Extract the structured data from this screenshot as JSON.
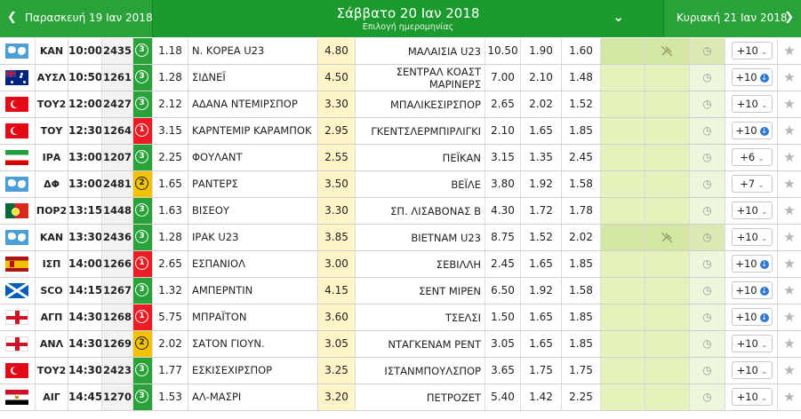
{
  "header": {
    "prev_day": "Παρασκευή 19 Ιαν 2018",
    "current_day": "Σάββατο 20 Ιαν 2018",
    "date_picker_label": "Επιλογή ημερομηνίας",
    "next_day": "Κυριακή 21 Ιαν 2018",
    "colors": {
      "bar": "#1b9a2e",
      "side": "#2aa23a"
    }
  },
  "colors": {
    "badge_green": "#2aa23a",
    "badge_red": "#ed1c24",
    "badge_yellow": "#f3c200",
    "draw_cell": "#fff5c9",
    "green_cell": "#e6f2bc"
  },
  "matches": [
    {
      "flag": "world-flag",
      "league": "ΚΑΝ",
      "time": "10:00",
      "code": "2435",
      "badge": "3",
      "badge_color": "green",
      "odd1": "1.18",
      "home": "Ν. ΚΟΡΕΑ U23",
      "oddx": "4.80",
      "away": [
        "ΜΑΛΑΙΣΙΑ U23"
      ],
      "odd2": "10.50",
      "under": "1.90",
      "over": "1.60",
      "more": "+10",
      "live": false,
      "no_stream": true
    },
    {
      "flag": "australia-flag",
      "league": "ΑΥΣΛ",
      "time": "10:50",
      "code": "1261",
      "badge": "3",
      "badge_color": "green",
      "odd1": "1.28",
      "home": "ΣΙΔΝΕΪ",
      "oddx": "4.50",
      "away": [
        "ΣΕΝΤΡΑΛ ΚΟΑΣΤ",
        "ΜΑΡΙΝΕΡΣ"
      ],
      "odd2": "7.00",
      "under": "2.10",
      "over": "1.48",
      "more": "+10",
      "live": true,
      "no_stream": false
    },
    {
      "flag": "turkey-flag",
      "league": "ΤΟΥ2",
      "time": "12:00",
      "code": "2427",
      "badge": "3",
      "badge_color": "green",
      "odd1": "2.12",
      "home": "ΑΔΑΝΑ ΝΤΕΜΙΡΣΠΟΡ",
      "oddx": "3.30",
      "away": [
        "ΜΠΑΛΙΚΕΣΙΡΣΠΟΡ"
      ],
      "odd2": "2.65",
      "under": "2.02",
      "over": "1.52",
      "more": "+10",
      "live": false,
      "no_stream": false
    },
    {
      "flag": "turkey-flag",
      "league": "ΤΟΥ",
      "time": "12:30",
      "code": "1264",
      "badge": "1",
      "badge_color": "red",
      "odd1": "3.15",
      "home": "ΚΑΡΝΤΕΜΙΡ ΚΑΡΑΜΠΟΚ",
      "oddx": "2.95",
      "away": [
        "ΓΚΕΝΤΣΛΕΡΜΠΙΡΛΙΓΚΙ"
      ],
      "odd2": "2.10",
      "under": "1.65",
      "over": "1.85",
      "more": "+10",
      "live": true,
      "no_stream": false
    },
    {
      "flag": "iran-flag",
      "league": "ΙΡΑ",
      "time": "13:00",
      "code": "1207",
      "badge": "3",
      "badge_color": "green",
      "odd1": "2.25",
      "home": "ΦΟΥΛΑΝΤ",
      "oddx": "2.55",
      "away": [
        "ΠΕΪΚΑΝ"
      ],
      "odd2": "3.15",
      "under": "1.35",
      "over": "2.45",
      "more": "+6",
      "live": false,
      "no_stream": false
    },
    {
      "flag": "world-flag",
      "league": "ΔΦ",
      "time": "13:00",
      "code": "2481",
      "badge": "2",
      "badge_color": "yellow",
      "odd1": "1.65",
      "home": "ΡΑΝΤΕΡΣ",
      "oddx": "3.50",
      "away": [
        "ΒΕΪΛΕ"
      ],
      "odd2": "3.80",
      "under": "1.92",
      "over": "1.58",
      "more": "+7",
      "live": false,
      "no_stream": false
    },
    {
      "flag": "portugal-flag",
      "league": "ΠΟΡ2",
      "time": "13:15",
      "code": "1448",
      "badge": "3",
      "badge_color": "green",
      "odd1": "1.63",
      "home": "ΒΙΣΕΟΥ",
      "oddx": "3.30",
      "away": [
        "ΣΠ. ΛΙΣΑΒΟΝΑΣ Β"
      ],
      "odd2": "4.30",
      "under": "1.72",
      "over": "1.78",
      "more": "+10",
      "live": false,
      "no_stream": false
    },
    {
      "flag": "world-flag",
      "league": "ΚΑΝ",
      "time": "13:30",
      "code": "2436",
      "badge": "3",
      "badge_color": "green",
      "odd1": "1.28",
      "home": "ΙΡΑΚ U23",
      "oddx": "3.85",
      "away": [
        "ΒΙΕΤΝΑΜ U23"
      ],
      "odd2": "8.75",
      "under": "1.52",
      "over": "2.02",
      "more": "+10",
      "live": false,
      "no_stream": true
    },
    {
      "flag": "spain-flag",
      "league": "ΙΣΠ",
      "time": "14:00",
      "code": "1266",
      "badge": "1",
      "badge_color": "red",
      "odd1": "2.65",
      "home": "ΕΣΠΑΝΙΟΛ",
      "oddx": "3.00",
      "away": [
        "ΣΕΒΙΛΛΗ"
      ],
      "odd2": "2.45",
      "under": "1.65",
      "over": "1.85",
      "more": "+10",
      "live": true,
      "no_stream": false
    },
    {
      "flag": "scotland-flag",
      "league": "SCO",
      "time": "14:15",
      "code": "1267",
      "badge": "3",
      "badge_color": "green",
      "odd1": "1.32",
      "home": "ΑΜΠΕΡΝΤΙΝ",
      "oddx": "4.15",
      "away": [
        "ΣΕΝΤ ΜΙΡΕΝ"
      ],
      "odd2": "6.50",
      "under": "1.92",
      "over": "1.58",
      "more": "+10",
      "live": true,
      "no_stream": false
    },
    {
      "flag": "england-flag",
      "league": "ΑΓΠ",
      "time": "14:30",
      "code": "1268",
      "badge": "1",
      "badge_color": "red",
      "odd1": "5.75",
      "home": "ΜΠΡΑΪΤΟΝ",
      "oddx": "3.60",
      "away": [
        "ΤΣΕΛΣΙ"
      ],
      "odd2": "1.50",
      "under": "1.65",
      "over": "1.85",
      "more": "+10",
      "live": true,
      "no_stream": false
    },
    {
      "flag": "england-flag",
      "league": "ΑΝΛ",
      "time": "14:30",
      "code": "1269",
      "badge": "2",
      "badge_color": "yellow",
      "odd1": "2.02",
      "home": "ΣΑΤΟΝ ΓΙΟΥΝ.",
      "oddx": "3.05",
      "away": [
        "ΝΤΑΓΚΕΝΑΜ ΡΕΝΤ"
      ],
      "odd2": "3.05",
      "under": "1.65",
      "over": "1.85",
      "more": "+10",
      "live": false,
      "no_stream": false
    },
    {
      "flag": "turkey-flag",
      "league": "ΤΟΥ2",
      "time": "14:30",
      "code": "2423",
      "badge": "3",
      "badge_color": "green",
      "odd1": "1.77",
      "home": "ΕΣΚΙΣΕΧΙΡΣΠΟΡ",
      "oddx": "3.25",
      "away": [
        "ΙΣΤΑΝΜΠΟΥΛΣΠΟΡ"
      ],
      "odd2": "3.65",
      "under": "1.75",
      "over": "1.75",
      "more": "+10",
      "live": false,
      "no_stream": false
    },
    {
      "flag": "egypt-flag",
      "league": "ΑΙΓ",
      "time": "14:45",
      "code": "1270",
      "badge": "3",
      "badge_color": "green",
      "odd1": "1.53",
      "home": "ΑΛ-ΜΑΣΡΙ",
      "oddx": "3.20",
      "away": [
        "ΠΕΤΡΟΖΕΤ"
      ],
      "odd2": "5.40",
      "under": "1.42",
      "over": "2.25",
      "more": "+10",
      "live": false,
      "no_stream": false
    }
  ]
}
